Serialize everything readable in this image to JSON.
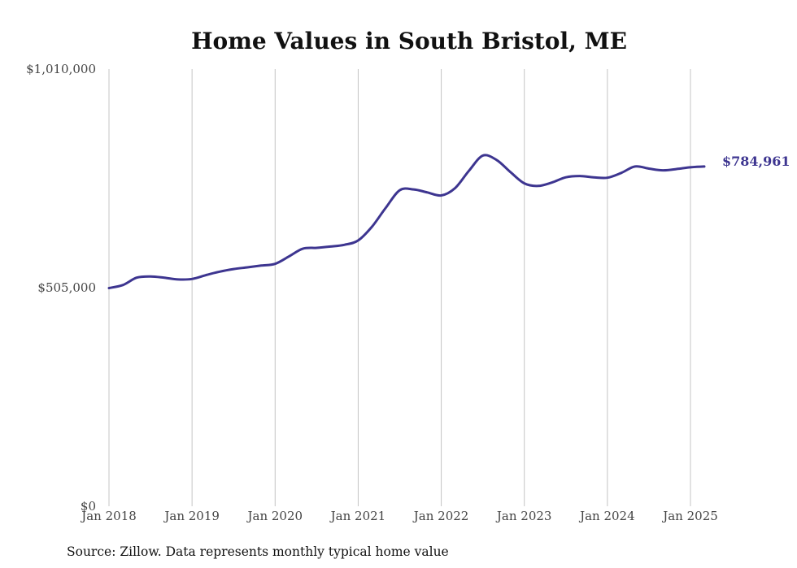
{
  "chart_data": {
    "type": "line",
    "title": "Home Values in South Bristol, ME",
    "source": "Source: Zillow. Data represents monthly typical home value",
    "ylim": [
      0,
      1010000
    ],
    "y_ticks": [
      {
        "value": 0,
        "label": "$0"
      },
      {
        "value": 505000,
        "label": "$505,000"
      },
      {
        "value": 1010000,
        "label": "$1,010,000"
      }
    ],
    "x_ticks": [
      {
        "value": "2018-01",
        "label": "Jan 2018"
      },
      {
        "value": "2019-01",
        "label": "Jan 2019"
      },
      {
        "value": "2020-01",
        "label": "Jan 2020"
      },
      {
        "value": "2021-01",
        "label": "Jan 2021"
      },
      {
        "value": "2022-01",
        "label": "Jan 2022"
      },
      {
        "value": "2023-01",
        "label": "Jan 2023"
      },
      {
        "value": "2024-01",
        "label": "Jan 2024"
      },
      {
        "value": "2025-01",
        "label": "Jan 2025"
      }
    ],
    "grid": "vertical",
    "line_color": "#3d3590",
    "end_label": "$784,961",
    "series": [
      {
        "x": [
          "2018-01",
          "2018-03",
          "2018-05",
          "2018-07",
          "2018-09",
          "2018-11",
          "2019-01",
          "2019-03",
          "2019-05",
          "2019-07",
          "2019-09",
          "2019-11",
          "2020-01",
          "2020-03",
          "2020-05",
          "2020-07",
          "2020-09",
          "2020-11",
          "2021-01",
          "2021-03",
          "2021-05",
          "2021-07",
          "2021-09",
          "2021-11",
          "2022-01",
          "2022-03",
          "2022-05",
          "2022-07",
          "2022-09",
          "2022-11",
          "2023-01",
          "2023-03",
          "2023-05",
          "2023-07",
          "2023-09",
          "2023-11",
          "2024-01",
          "2024-03",
          "2024-05",
          "2024-07",
          "2024-09",
          "2024-11",
          "2025-01",
          "2025-03"
        ],
        "y": [
          504000,
          511000,
          528000,
          531000,
          528000,
          524000,
          525000,
          534000,
          542000,
          548000,
          552000,
          556000,
          560000,
          577000,
          595000,
          597000,
          600000,
          604000,
          614000,
          646000,
          690000,
          730000,
          732000,
          725000,
          718000,
          735000,
          775000,
          810000,
          800000,
          772000,
          746000,
          740000,
          748000,
          760000,
          763000,
          760000,
          759000,
          770000,
          785000,
          780000,
          776000,
          779000,
          783000,
          784961
        ]
      }
    ]
  }
}
